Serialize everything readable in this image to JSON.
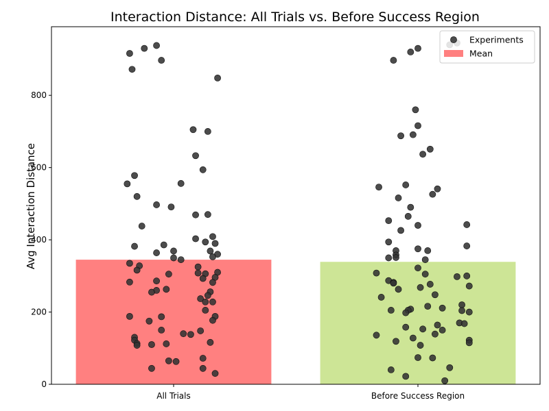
{
  "chart_data": {
    "type": "bar",
    "title": "Interaction Distance: All Trials vs. Before Success Region",
    "xlabel": "",
    "ylabel": "Avg Interaction Distance",
    "ylim": [
      0,
      990
    ],
    "yticks": [
      0,
      200,
      400,
      600,
      800
    ],
    "categories": [
      "All Trials",
      "Before Success Region"
    ],
    "values": [
      345,
      339
    ],
    "bar_colors": [
      "#ff8080",
      "#cde596"
    ],
    "point_color": "#333333",
    "legend": {
      "position": "top-right",
      "entries": [
        {
          "label": "Experiments",
          "kind": "point",
          "color": "#333333"
        },
        {
          "label": "Mean",
          "kind": "bar",
          "color": "#ff8080"
        }
      ]
    },
    "series": [
      {
        "name": "Experiments",
        "category": "All Trials",
        "points": [
          {
            "jitter": -0.18,
            "y": 916
          },
          {
            "jitter": -0.12,
            "y": 930
          },
          {
            "jitter": -0.07,
            "y": 938
          },
          {
            "jitter": -0.05,
            "y": 897
          },
          {
            "jitter": -0.17,
            "y": 872
          },
          {
            "jitter": 0.18,
            "y": 848
          },
          {
            "jitter": 0.08,
            "y": 705
          },
          {
            "jitter": 0.14,
            "y": 700
          },
          {
            "jitter": 0.09,
            "y": 633
          },
          {
            "jitter": 0.12,
            "y": 594
          },
          {
            "jitter": -0.16,
            "y": 578
          },
          {
            "jitter": 0.03,
            "y": 556
          },
          {
            "jitter": -0.19,
            "y": 555
          },
          {
            "jitter": -0.15,
            "y": 520
          },
          {
            "jitter": -0.07,
            "y": 497
          },
          {
            "jitter": -0.01,
            "y": 491
          },
          {
            "jitter": 0.09,
            "y": 469
          },
          {
            "jitter": 0.14,
            "y": 470
          },
          {
            "jitter": -0.13,
            "y": 438
          },
          {
            "jitter": 0.16,
            "y": 409
          },
          {
            "jitter": 0.09,
            "y": 403
          },
          {
            "jitter": 0.13,
            "y": 394
          },
          {
            "jitter": 0.17,
            "y": 390
          },
          {
            "jitter": -0.04,
            "y": 386
          },
          {
            "jitter": -0.16,
            "y": 382
          },
          {
            "jitter": 0.15,
            "y": 369
          },
          {
            "jitter": 0.0,
            "y": 369
          },
          {
            "jitter": -0.07,
            "y": 364
          },
          {
            "jitter": 0.18,
            "y": 360
          },
          {
            "jitter": 0.16,
            "y": 353
          },
          {
            "jitter": 0.0,
            "y": 350
          },
          {
            "jitter": 0.03,
            "y": 345
          },
          {
            "jitter": -0.18,
            "y": 335
          },
          {
            "jitter": -0.14,
            "y": 328
          },
          {
            "jitter": 0.1,
            "y": 325
          },
          {
            "jitter": -0.15,
            "y": 316
          },
          {
            "jitter": 0.18,
            "y": 310
          },
          {
            "jitter": 0.1,
            "y": 308
          },
          {
            "jitter": 0.13,
            "y": 306
          },
          {
            "jitter": -0.02,
            "y": 305
          },
          {
            "jitter": 0.17,
            "y": 296
          },
          {
            "jitter": 0.12,
            "y": 293
          },
          {
            "jitter": -0.07,
            "y": 286
          },
          {
            "jitter": -0.18,
            "y": 283
          },
          {
            "jitter": 0.16,
            "y": 282
          },
          {
            "jitter": -0.03,
            "y": 263
          },
          {
            "jitter": -0.07,
            "y": 260
          },
          {
            "jitter": -0.09,
            "y": 255
          },
          {
            "jitter": 0.15,
            "y": 256
          },
          {
            "jitter": 0.14,
            "y": 246
          },
          {
            "jitter": 0.11,
            "y": 237
          },
          {
            "jitter": 0.16,
            "y": 228
          },
          {
            "jitter": 0.13,
            "y": 228
          },
          {
            "jitter": 0.13,
            "y": 205
          },
          {
            "jitter": -0.18,
            "y": 188
          },
          {
            "jitter": 0.17,
            "y": 188
          },
          {
            "jitter": -0.05,
            "y": 187
          },
          {
            "jitter": 0.16,
            "y": 177
          },
          {
            "jitter": -0.1,
            "y": 175
          },
          {
            "jitter": -0.05,
            "y": 150
          },
          {
            "jitter": 0.11,
            "y": 148
          },
          {
            "jitter": 0.04,
            "y": 140
          },
          {
            "jitter": 0.07,
            "y": 138
          },
          {
            "jitter": -0.16,
            "y": 130
          },
          {
            "jitter": -0.16,
            "y": 122
          },
          {
            "jitter": 0.15,
            "y": 116
          },
          {
            "jitter": -0.15,
            "y": 113
          },
          {
            "jitter": -0.03,
            "y": 112
          },
          {
            "jitter": -0.09,
            "y": 110
          },
          {
            "jitter": -0.15,
            "y": 108
          },
          {
            "jitter": 0.12,
            "y": 72
          },
          {
            "jitter": -0.02,
            "y": 65
          },
          {
            "jitter": 0.01,
            "y": 63
          },
          {
            "jitter": -0.09,
            "y": 44
          },
          {
            "jitter": 0.12,
            "y": 44
          },
          {
            "jitter": 0.17,
            "y": 30
          }
        ]
      },
      {
        "name": "Experiments",
        "category": "Before Success Region",
        "points": [
          {
            "jitter": 0.16,
            "y": 945
          },
          {
            "jitter": 0.13,
            "y": 940
          },
          {
            "jitter": 0.0,
            "y": 930
          },
          {
            "jitter": -0.03,
            "y": 920
          },
          {
            "jitter": -0.1,
            "y": 897
          },
          {
            "jitter": -0.01,
            "y": 760
          },
          {
            "jitter": 0.0,
            "y": 716
          },
          {
            "jitter": -0.02,
            "y": 691
          },
          {
            "jitter": -0.07,
            "y": 688
          },
          {
            "jitter": 0.05,
            "y": 651
          },
          {
            "jitter": 0.02,
            "y": 637
          },
          {
            "jitter": -0.05,
            "y": 552
          },
          {
            "jitter": -0.16,
            "y": 546
          },
          {
            "jitter": 0.08,
            "y": 541
          },
          {
            "jitter": 0.06,
            "y": 526
          },
          {
            "jitter": -0.08,
            "y": 516
          },
          {
            "jitter": -0.03,
            "y": 490
          },
          {
            "jitter": -0.04,
            "y": 465
          },
          {
            "jitter": -0.12,
            "y": 453
          },
          {
            "jitter": 0.2,
            "y": 442
          },
          {
            "jitter": 0.0,
            "y": 440
          },
          {
            "jitter": -0.07,
            "y": 426
          },
          {
            "jitter": -0.12,
            "y": 394
          },
          {
            "jitter": 0.2,
            "y": 383
          },
          {
            "jitter": 0.0,
            "y": 375
          },
          {
            "jitter": 0.04,
            "y": 370
          },
          {
            "jitter": -0.09,
            "y": 370
          },
          {
            "jitter": -0.09,
            "y": 358
          },
          {
            "jitter": -0.12,
            "y": 350
          },
          {
            "jitter": -0.09,
            "y": 351
          },
          {
            "jitter": 0.03,
            "y": 345
          },
          {
            "jitter": 0.0,
            "y": 322
          },
          {
            "jitter": -0.17,
            "y": 308
          },
          {
            "jitter": 0.03,
            "y": 305
          },
          {
            "jitter": 0.2,
            "y": 300
          },
          {
            "jitter": 0.16,
            "y": 298
          },
          {
            "jitter": -0.12,
            "y": 287
          },
          {
            "jitter": -0.1,
            "y": 282
          },
          {
            "jitter": -0.1,
            "y": 280
          },
          {
            "jitter": 0.05,
            "y": 277
          },
          {
            "jitter": 0.21,
            "y": 272
          },
          {
            "jitter": 0.01,
            "y": 268
          },
          {
            "jitter": -0.08,
            "y": 263
          },
          {
            "jitter": 0.07,
            "y": 248
          },
          {
            "jitter": -0.15,
            "y": 241
          },
          {
            "jitter": 0.18,
            "y": 220
          },
          {
            "jitter": 0.04,
            "y": 216
          },
          {
            "jitter": -0.03,
            "y": 208
          },
          {
            "jitter": 0.1,
            "y": 211
          },
          {
            "jitter": 0.18,
            "y": 204
          },
          {
            "jitter": -0.11,
            "y": 205
          },
          {
            "jitter": -0.04,
            "y": 205
          },
          {
            "jitter": 0.21,
            "y": 200
          },
          {
            "jitter": -0.05,
            "y": 198
          },
          {
            "jitter": 0.08,
            "y": 164
          },
          {
            "jitter": 0.17,
            "y": 170
          },
          {
            "jitter": 0.19,
            "y": 168
          },
          {
            "jitter": -0.05,
            "y": 158
          },
          {
            "jitter": 0.02,
            "y": 153
          },
          {
            "jitter": 0.1,
            "y": 150
          },
          {
            "jitter": 0.07,
            "y": 139
          },
          {
            "jitter": -0.17,
            "y": 136
          },
          {
            "jitter": -0.02,
            "y": 128
          },
          {
            "jitter": 0.21,
            "y": 122
          },
          {
            "jitter": -0.09,
            "y": 119
          },
          {
            "jitter": 0.21,
            "y": 115
          },
          {
            "jitter": 0.01,
            "y": 108
          },
          {
            "jitter": 0.0,
            "y": 74
          },
          {
            "jitter": 0.06,
            "y": 73
          },
          {
            "jitter": 0.13,
            "y": 46
          },
          {
            "jitter": -0.11,
            "y": 40
          },
          {
            "jitter": -0.05,
            "y": 22
          },
          {
            "jitter": 0.11,
            "y": 10
          }
        ]
      }
    ]
  }
}
